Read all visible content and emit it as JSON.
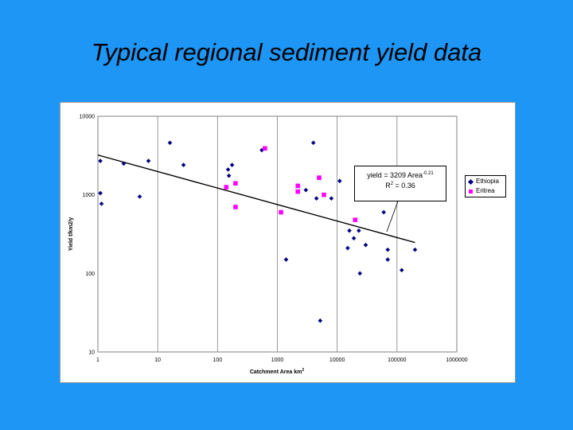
{
  "slide": {
    "title": "Typical regional sediment yield data"
  },
  "equation": {
    "line1_prefix": "yield = 3209 Area",
    "line1_exponent": "-0.21",
    "line2_prefix": "R",
    "line2_exponent": "2",
    "line2_suffix": " = 0.36"
  },
  "chart_data": {
    "type": "scatter",
    "title": "",
    "xlabel": "Catchment Area km",
    "xlabel_superscript": "2",
    "ylabel": "Yield t/km2/y",
    "x_scale": "log",
    "y_scale": "log",
    "xlim": [
      1,
      1000000
    ],
    "ylim": [
      10,
      10000
    ],
    "x_ticks": [
      {
        "value": 1,
        "label": "1"
      },
      {
        "value": 10,
        "label": "10"
      },
      {
        "value": 100,
        "label": "100"
      },
      {
        "value": 1000,
        "label": "1000"
      },
      {
        "value": 10000,
        "label": "10000"
      },
      {
        "value": 100000,
        "label": "100000"
      },
      {
        "value": 1000000,
        "label": "1000000"
      }
    ],
    "y_ticks": [
      {
        "value": 10,
        "label": "10"
      },
      {
        "value": 100,
        "label": "100"
      },
      {
        "value": 1000,
        "label": "1000"
      },
      {
        "value": 10000,
        "label": "10000"
      }
    ],
    "grid": {
      "vertical_major": true,
      "horizontal": false
    },
    "legend_position": "right",
    "series": [
      {
        "name": "Ethiopia",
        "marker": "diamond",
        "color": "#000080",
        "points": [
          {
            "x": 1.1,
            "y": 2700
          },
          {
            "x": 1.1,
            "y": 1050
          },
          {
            "x": 1.15,
            "y": 770
          },
          {
            "x": 2.7,
            "y": 2500
          },
          {
            "x": 5,
            "y": 950
          },
          {
            "x": 7,
            "y": 2700
          },
          {
            "x": 16,
            "y": 4600
          },
          {
            "x": 27,
            "y": 2400
          },
          {
            "x": 150,
            "y": 2100
          },
          {
            "x": 155,
            "y": 1750
          },
          {
            "x": 175,
            "y": 2400
          },
          {
            "x": 550,
            "y": 3700
          },
          {
            "x": 1400,
            "y": 150
          },
          {
            "x": 3000,
            "y": 1150
          },
          {
            "x": 4000,
            "y": 4600
          },
          {
            "x": 4500,
            "y": 900
          },
          {
            "x": 5200,
            "y": 25
          },
          {
            "x": 8000,
            "y": 900
          },
          {
            "x": 11000,
            "y": 1500
          },
          {
            "x": 15000,
            "y": 210
          },
          {
            "x": 16000,
            "y": 350
          },
          {
            "x": 19000,
            "y": 280
          },
          {
            "x": 23000,
            "y": 350
          },
          {
            "x": 24000,
            "y": 100
          },
          {
            "x": 30000,
            "y": 230
          },
          {
            "x": 60000,
            "y": 600
          },
          {
            "x": 70000,
            "y": 150
          },
          {
            "x": 70000,
            "y": 200
          },
          {
            "x": 120000,
            "y": 110
          },
          {
            "x": 200000,
            "y": 200
          }
        ]
      },
      {
        "name": "Eritrea",
        "marker": "square",
        "color": "#ff00ff",
        "points": [
          {
            "x": 140,
            "y": 1250
          },
          {
            "x": 200,
            "y": 1400
          },
          {
            "x": 200,
            "y": 700
          },
          {
            "x": 620,
            "y": 3900
          },
          {
            "x": 1150,
            "y": 600
          },
          {
            "x": 2200,
            "y": 1100
          },
          {
            "x": 2200,
            "y": 1300
          },
          {
            "x": 5000,
            "y": 1650
          },
          {
            "x": 6000,
            "y": 1000
          },
          {
            "x": 20000,
            "y": 480
          }
        ]
      }
    ],
    "trendline": {
      "type": "power",
      "coefficient": 3209,
      "exponent": -0.21,
      "x_range": [
        1,
        200000
      ]
    }
  }
}
